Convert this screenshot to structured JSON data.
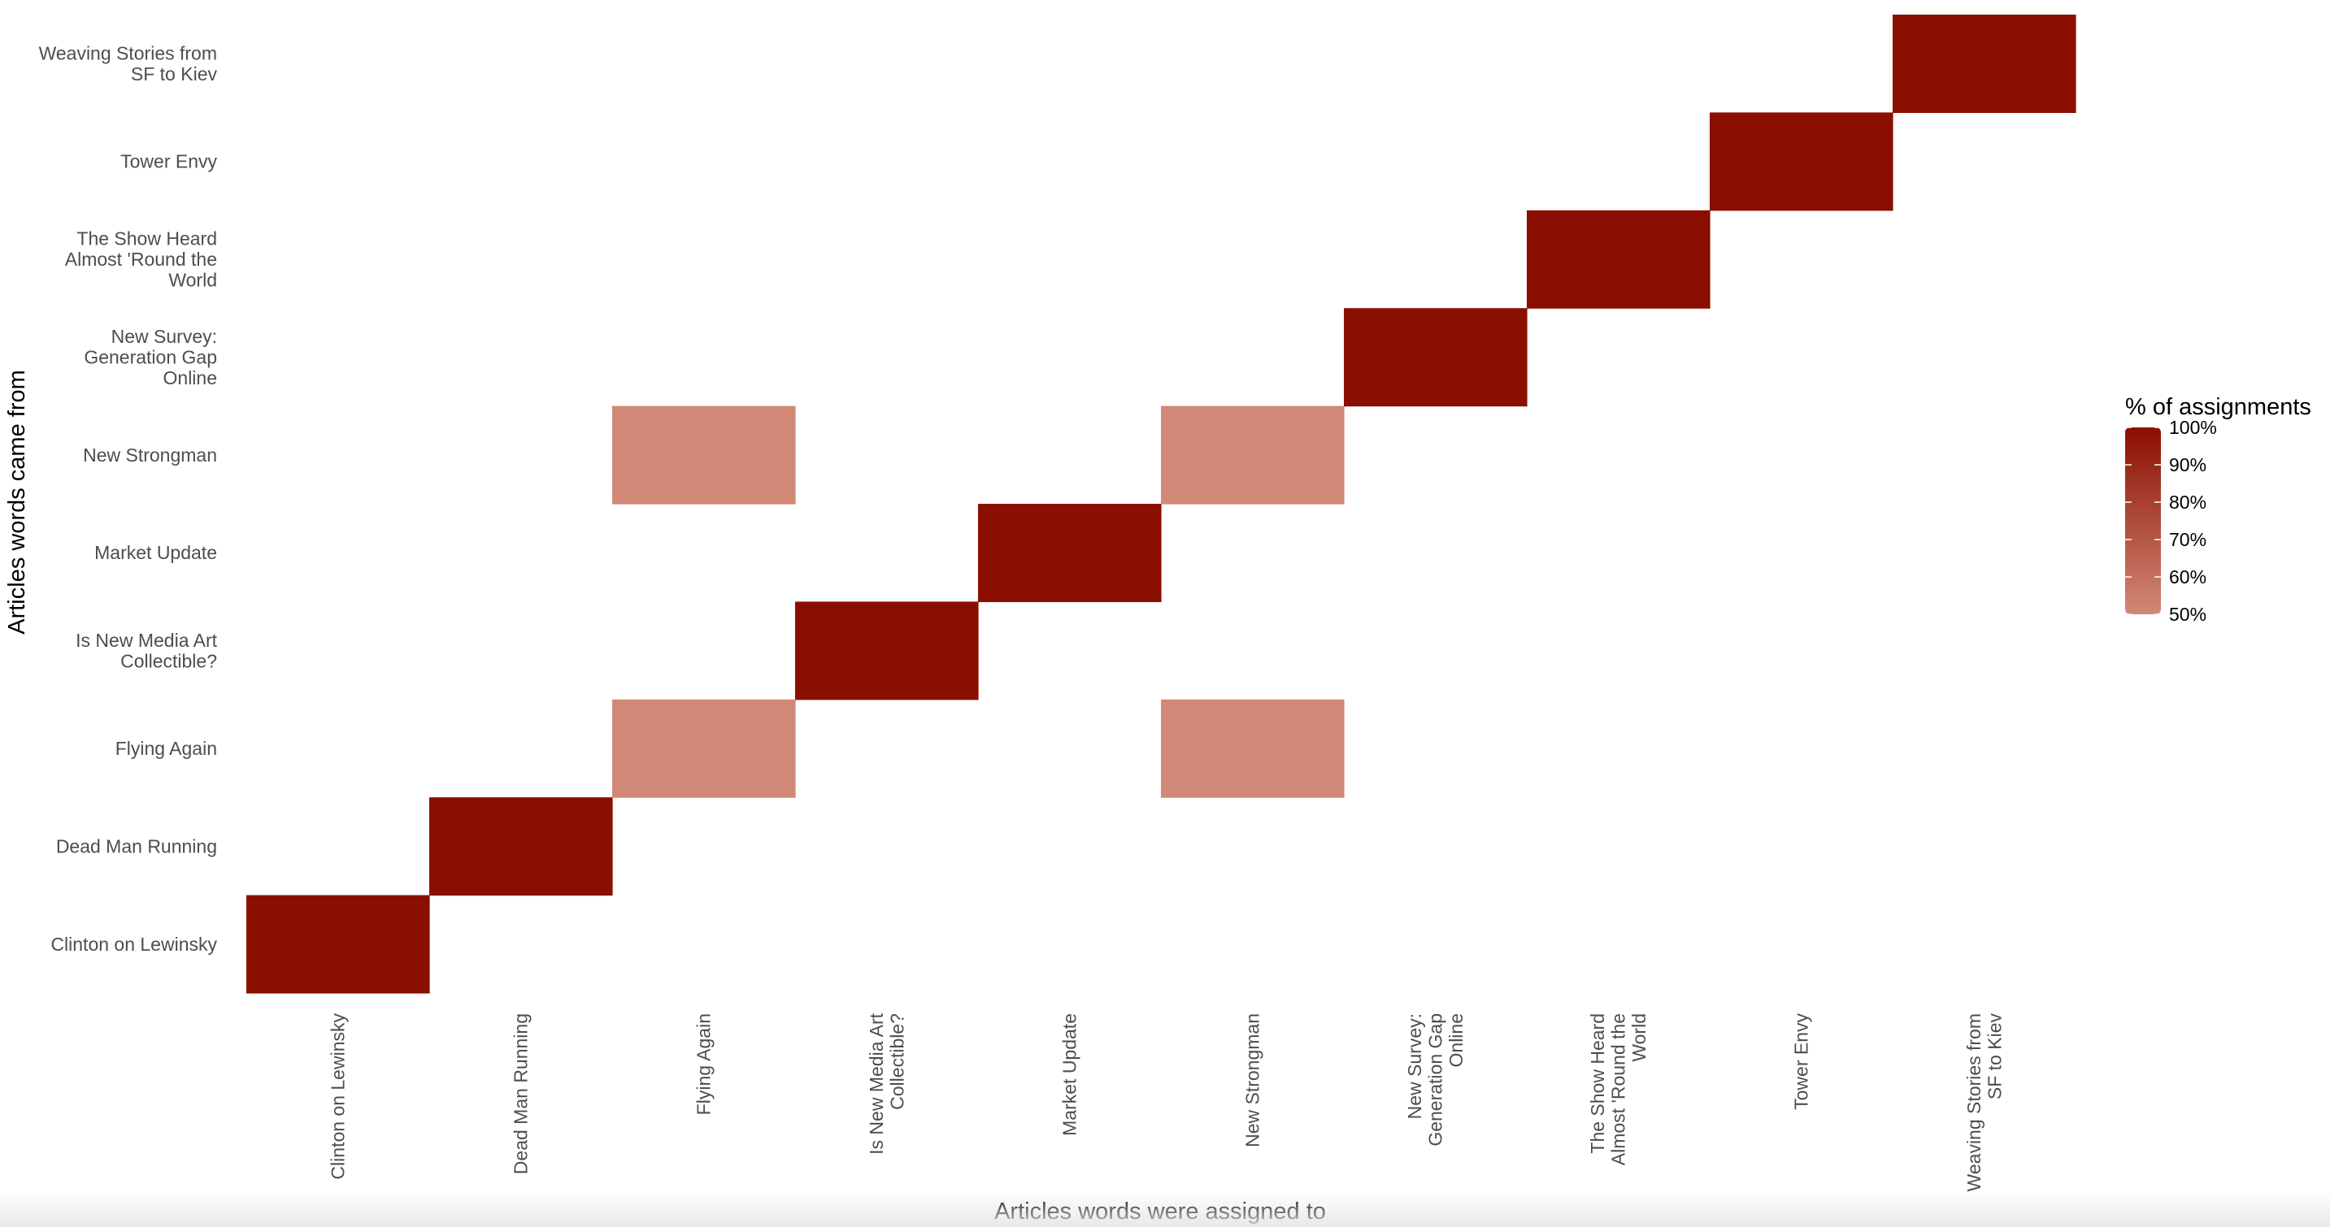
{
  "chart_data": {
    "type": "heatmap",
    "title": "",
    "xlabel": "Articles words were assigned to",
    "ylabel": "Articles words came from",
    "x_categories": [
      "Clinton on Lewinsky",
      "Dead Man Running",
      "Flying Again",
      "Is New Media Art Collectible?",
      "Market Update",
      "New Strongman",
      "New Survey: Generation Gap Online",
      "The Show Heard Almost 'Round the World",
      "Tower Envy",
      "Weaving Stories from SF to Kiev"
    ],
    "y_categories": [
      "Clinton on Lewinsky",
      "Dead Man Running",
      "Flying Again",
      "Is New Media Art Collectible?",
      "Market Update",
      "New Strongman",
      "New Survey: Generation Gap Online",
      "The Show Heard Almost 'Round the World",
      "Tower Envy",
      "Weaving Stories from SF to Kiev"
    ],
    "x_tick_lines": [
      [
        "Clinton on Lewinsky"
      ],
      [
        "Dead Man Running"
      ],
      [
        "Flying Again"
      ],
      [
        "Is New Media Art",
        "Collectible?"
      ],
      [
        "Market Update"
      ],
      [
        "New Strongman"
      ],
      [
        "New Survey:",
        "Generation Gap",
        "Online"
      ],
      [
        "The Show Heard",
        "Almost 'Round the",
        "World"
      ],
      [
        "Tower Envy"
      ],
      [
        "Weaving Stories from",
        "SF to Kiev"
      ]
    ],
    "y_tick_lines": [
      [
        "Clinton on Lewinsky"
      ],
      [
        "Dead Man Running"
      ],
      [
        "Flying Again"
      ],
      [
        "Is New Media Art",
        "Collectible?"
      ],
      [
        "Market Update"
      ],
      [
        "New Strongman"
      ],
      [
        "New Survey:",
        "Generation Gap",
        "Online"
      ],
      [
        "The Show Heard",
        "Almost 'Round the",
        "World"
      ],
      [
        "Tower Envy"
      ],
      [
        "Weaving Stories from",
        "SF to Kiev"
      ]
    ],
    "cells": [
      {
        "x": "Clinton on Lewinsky",
        "y": "Clinton on Lewinsky",
        "value": 100
      },
      {
        "x": "Dead Man Running",
        "y": "Dead Man Running",
        "value": 100
      },
      {
        "x": "Flying Again",
        "y": "Flying Again",
        "value": 50
      },
      {
        "x": "New Strongman",
        "y": "Flying Again",
        "value": 50
      },
      {
        "x": "Is New Media Art Collectible?",
        "y": "Is New Media Art Collectible?",
        "value": 100
      },
      {
        "x": "Market Update",
        "y": "Market Update",
        "value": 100
      },
      {
        "x": "Flying Again",
        "y": "New Strongman",
        "value": 50
      },
      {
        "x": "New Strongman",
        "y": "New Strongman",
        "value": 50
      },
      {
        "x": "New Survey: Generation Gap Online",
        "y": "New Survey: Generation Gap Online",
        "value": 100
      },
      {
        "x": "The Show Heard Almost 'Round the World",
        "y": "The Show Heard Almost 'Round the World",
        "value": 100
      },
      {
        "x": "Tower Envy",
        "y": "Tower Envy",
        "value": 100
      },
      {
        "x": "Weaving Stories from SF to Kiev",
        "y": "Weaving Stories from SF to Kiev",
        "value": 100
      }
    ],
    "legend": {
      "title": "% of assignments",
      "position": "right",
      "breaks": [
        100,
        90,
        80,
        70,
        60,
        50
      ],
      "labels": [
        "100%",
        "90%",
        "80%",
        "70%",
        "60%",
        "50%"
      ],
      "range": [
        50,
        100
      ],
      "color_low": "#d28876",
      "color_high": "#8b0f00"
    },
    "grid": false
  }
}
